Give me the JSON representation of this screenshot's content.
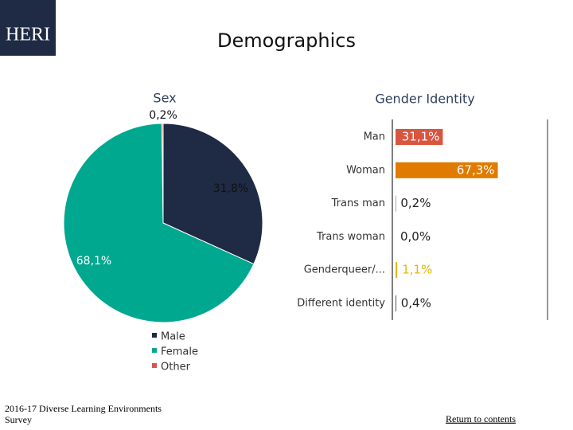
{
  "logo": "HERI",
  "title": "Demographics",
  "footer": "2016-17 Diverse Learning Environments Survey",
  "link": "Return to contents",
  "chart_data": [
    {
      "type": "pie",
      "title": "Sex",
      "categories": [
        "Male",
        "Female",
        "Other"
      ],
      "values": [
        31.8,
        68.1,
        0.2
      ],
      "value_labels": [
        "31,8%",
        "68,1%",
        "0,2%"
      ],
      "colors": [
        "#1f2a44",
        "#00a88f",
        "#d9534f"
      ]
    },
    {
      "type": "hbar",
      "title": "Gender Identity",
      "categories": [
        "Man",
        "Woman",
        "Trans man",
        "Trans woman",
        "Genderqueer/...",
        "Different identity"
      ],
      "values": [
        31.1,
        67.3,
        0.2,
        0.0,
        1.1,
        0.4
      ],
      "value_labels": [
        "31,1%",
        "67,3%",
        "0,2%",
        "0,0%",
        "1,1%",
        "0,4%"
      ],
      "colors": [
        "#d9553f",
        "#e07b00",
        "#222222",
        "#222222",
        "#e6b800",
        "#222222"
      ],
      "xlim": [
        0,
        100
      ]
    }
  ]
}
